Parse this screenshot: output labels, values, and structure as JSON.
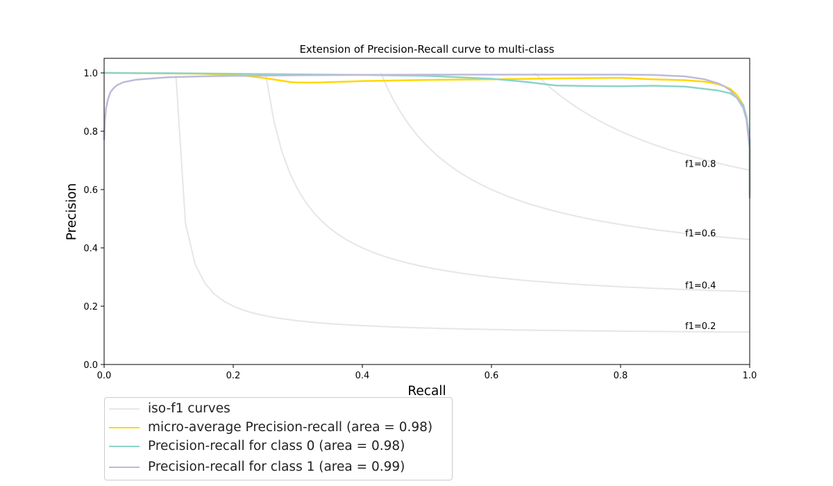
{
  "chart_data": {
    "type": "line",
    "title": "Extension of Precision-Recall curve to multi-class",
    "xlabel": "Recall",
    "ylabel": "Precision",
    "xlim": [
      0.0,
      1.0
    ],
    "ylim": [
      0.0,
      1.05
    ],
    "xticks": [
      "0.0",
      "0.2",
      "0.4",
      "0.6",
      "0.8",
      "1.0"
    ],
    "yticks": [
      "0.0",
      "0.2",
      "0.4",
      "0.6",
      "0.8",
      "1.0"
    ],
    "grid": false,
    "legend_position": "below-left",
    "iso_f1": [
      {
        "f1": 0.2,
        "label": "f1=0.2"
      },
      {
        "f1": 0.4,
        "label": "f1=0.4"
      },
      {
        "f1": 0.6,
        "label": "f1=0.6"
      },
      {
        "f1": 0.8,
        "label": "f1=0.8"
      }
    ],
    "iso_color": "#e6e6e6",
    "series": [
      {
        "name": "micro-average Precision-recall (area = 0.98)",
        "color": "#ffd700",
        "x": [
          0.0,
          0.002,
          0.005,
          0.01,
          0.05,
          0.1,
          0.15,
          0.2,
          0.22,
          0.25,
          0.27,
          0.29,
          0.3,
          0.33,
          0.4,
          0.5,
          0.6,
          0.7,
          0.8,
          0.85,
          0.9,
          0.93,
          0.95,
          0.96,
          0.97,
          0.98,
          0.99,
          0.995,
          1.0,
          1.0
        ],
        "y": [
          1.0,
          1.0,
          1.0,
          1.0,
          0.999,
          0.998,
          0.997,
          0.993,
          0.99,
          0.982,
          0.975,
          0.968,
          0.967,
          0.967,
          0.972,
          0.976,
          0.978,
          0.981,
          0.983,
          0.978,
          0.975,
          0.97,
          0.962,
          0.955,
          0.945,
          0.925,
          0.89,
          0.85,
          0.75,
          0.58
        ]
      },
      {
        "name": "Precision-recall for class 0 (area = 0.98)",
        "color": "#8dd3c7",
        "x": [
          0.0,
          0.002,
          0.005,
          0.01,
          0.05,
          0.1,
          0.2,
          0.3,
          0.4,
          0.5,
          0.6,
          0.65,
          0.7,
          0.75,
          0.8,
          0.85,
          0.9,
          0.95,
          0.96,
          0.97,
          0.98,
          0.99,
          0.995,
          1.0,
          1.0
        ],
        "y": [
          1.0,
          1.0,
          1.0,
          1.0,
          0.999,
          0.999,
          0.997,
          0.995,
          0.993,
          0.99,
          0.98,
          0.97,
          0.957,
          0.955,
          0.954,
          0.956,
          0.953,
          0.94,
          0.935,
          0.93,
          0.915,
          0.89,
          0.85,
          0.77,
          0.58
        ]
      },
      {
        "name": "Precision-recall for class 1 (area = 0.99)",
        "color": "#bebada",
        "x": [
          0.0,
          0.001,
          0.003,
          0.006,
          0.01,
          0.015,
          0.02,
          0.03,
          0.05,
          0.08,
          0.1,
          0.15,
          0.2,
          0.3,
          0.4,
          0.5,
          0.6,
          0.7,
          0.8,
          0.85,
          0.9,
          0.93,
          0.95,
          0.96,
          0.97,
          0.98,
          0.99,
          0.995,
          1.0,
          1.0
        ],
        "y": [
          0.77,
          0.83,
          0.88,
          0.91,
          0.935,
          0.948,
          0.958,
          0.968,
          0.977,
          0.982,
          0.985,
          0.988,
          0.99,
          0.992,
          0.993,
          0.994,
          0.994,
          0.994,
          0.994,
          0.993,
          0.988,
          0.978,
          0.965,
          0.955,
          0.94,
          0.915,
          0.88,
          0.84,
          0.74,
          0.57
        ]
      }
    ],
    "legend_iso_label": "iso-f1 curves"
  }
}
